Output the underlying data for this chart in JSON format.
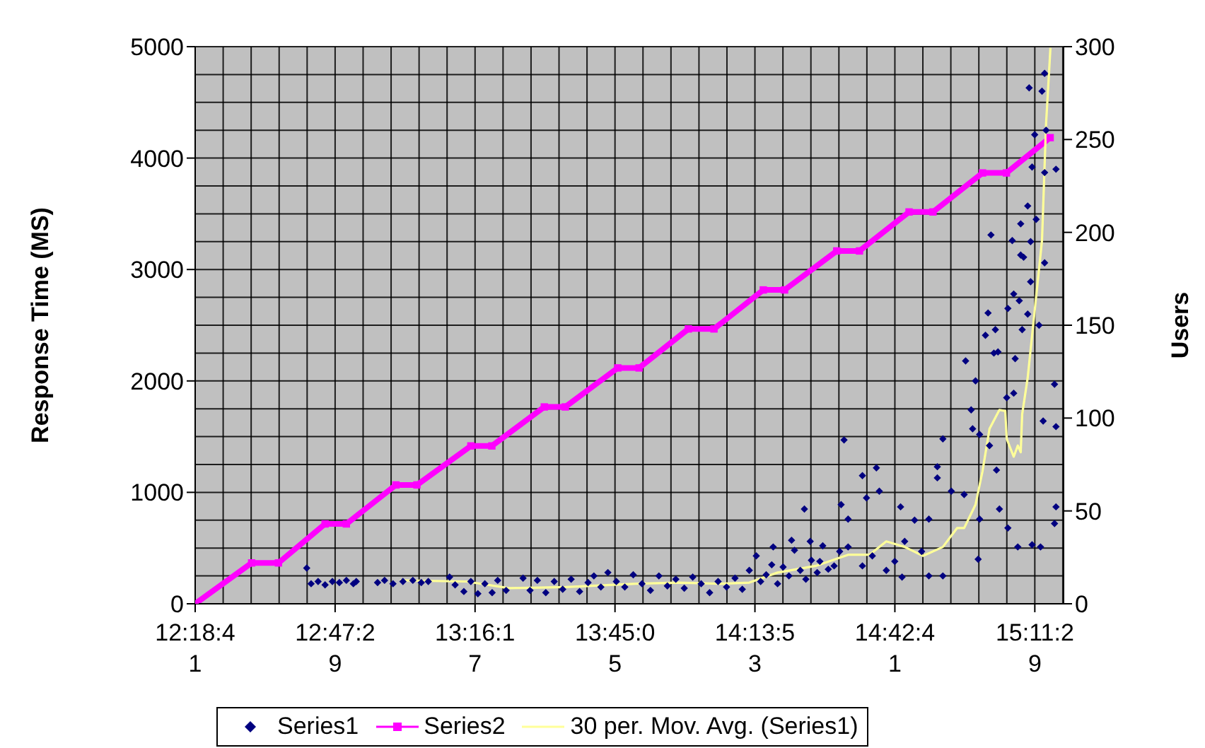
{
  "chart_data": {
    "type": "scatter",
    "ylabel": "Response Time (MS)",
    "y2label": "Users",
    "xlim": [
      12.31139,
      15.29
    ],
    "xticks": [
      {
        "value": 12.31139,
        "label": "12:18:41"
      },
      {
        "value": 12.79139,
        "label": "12:47:29"
      },
      {
        "value": 13.27139,
        "label": "13:16:17"
      },
      {
        "value": 13.75139,
        "label": "13:45:05"
      },
      {
        "value": 14.23139,
        "label": "14:13:53"
      },
      {
        "value": 14.71139,
        "label": "14:42:41"
      },
      {
        "value": 15.19139,
        "label": "15:11:29"
      }
    ],
    "ylim": [
      0,
      5000
    ],
    "yticks": [
      0,
      1000,
      2000,
      3000,
      4000,
      5000
    ],
    "y2lim": [
      0,
      300
    ],
    "y2ticks": [
      0,
      50,
      100,
      150,
      200,
      250,
      300
    ],
    "grid": true,
    "legend": "bottom",
    "series": [
      {
        "name": "Series1",
        "marker": "diamond",
        "color": "#000080",
        "x": [
          12.694,
          12.709,
          12.733,
          12.757,
          12.782,
          12.806,
          12.83,
          12.854,
          12.864,
          12.937,
          12.961,
          12.99,
          13.024,
          13.058,
          13.087,
          13.111,
          13.184,
          13.203,
          13.233,
          13.257,
          13.281,
          13.305,
          13.33,
          13.349,
          13.378,
          13.436,
          13.46,
          13.485,
          13.514,
          13.543,
          13.572,
          13.601,
          13.63,
          13.659,
          13.679,
          13.703,
          13.727,
          13.756,
          13.785,
          13.814,
          13.844,
          13.873,
          13.902,
          13.931,
          13.96,
          13.989,
          14.018,
          14.047,
          14.076,
          14.105,
          14.134,
          14.163,
          14.188,
          14.212,
          14.236,
          14.251,
          14.27,
          14.289,
          14.294,
          14.309,
          14.328,
          14.348,
          14.357,
          14.367,
          14.387,
          14.401,
          14.406,
          14.421,
          14.425,
          14.445,
          14.454,
          14.464,
          14.483,
          14.503,
          14.522,
          14.527,
          14.537,
          14.551,
          14.551,
          14.6,
          14.6,
          14.614,
          14.634,
          14.648,
          14.658,
          14.682,
          14.711,
          14.731,
          14.736,
          14.745,
          14.779,
          14.803,
          14.828,
          14.828,
          14.857,
          14.857,
          14.876,
          14.876,
          14.905,
          14.949,
          14.954,
          14.973,
          14.978,
          14.988,
          14.997,
          15.002,
          15.002,
          15.022,
          15.031,
          15.036,
          15.041,
          15.051,
          15.056,
          15.06,
          15.065,
          15.07,
          15.095,
          15.099,
          15.099,
          15.114,
          15.119,
          15.119,
          15.124,
          15.133,
          15.138,
          15.143,
          15.143,
          15.148,
          15.153,
          15.167,
          15.167,
          15.172,
          15.177,
          15.177,
          15.182,
          15.182,
          15.191,
          15.196,
          15.206,
          15.211,
          15.216,
          15.22,
          15.225,
          15.225,
          15.225,
          15.23,
          15.259,
          15.259,
          15.264,
          15.264,
          15.264
        ],
        "values": [
          320,
          180,
          200,
          170,
          200,
          190,
          210,
          180,
          200,
          190,
          210,
          180,
          200,
          210,
          190,
          200,
          240,
          170,
          110,
          200,
          90,
          180,
          100,
          210,
          120,
          230,
          120,
          210,
          100,
          200,
          130,
          220,
          110,
          190,
          250,
          150,
          280,
          200,
          150,
          260,
          180,
          120,
          250,
          160,
          220,
          140,
          240,
          180,
          100,
          200,
          150,
          230,
          130,
          300,
          430,
          200,
          260,
          350,
          510,
          180,
          330,
          250,
          570,
          480,
          300,
          850,
          220,
          560,
          390,
          280,
          380,
          520,
          310,
          340,
          470,
          890,
          1470,
          760,
          510,
          1150,
          340,
          950,
          430,
          1220,
          1010,
          300,
          380,
          870,
          240,
          560,
          750,
          470,
          760,
          250,
          1130,
          1230,
          1480,
          250,
          1010,
          980,
          2180,
          1740,
          1570,
          2000,
          400,
          760,
          1520,
          2410,
          2610,
          1420,
          3310,
          2250,
          2460,
          1200,
          2260,
          850,
          1850,
          2650,
          680,
          3260,
          2780,
          1890,
          2200,
          510,
          2720,
          3410,
          3130,
          2460,
          3110,
          3570,
          2600,
          4630,
          2890,
          3250,
          3920,
          530,
          4210,
          3450,
          2500,
          510,
          4600,
          1640,
          4760,
          3870,
          3060,
          4250,
          1970,
          720,
          3900,
          1590,
          870
        ]
      },
      {
        "name": "Series2",
        "type": "line",
        "axis": "y2",
        "marker": "square",
        "color": "#ff00ff",
        "x": [
          12.3114,
          12.505,
          12.597,
          12.757,
          12.83,
          13.0,
          13.072,
          13.257,
          13.329,
          13.509,
          13.581,
          13.761,
          13.834,
          14.003,
          14.091,
          14.26,
          14.333,
          14.512,
          14.59,
          14.76,
          14.842,
          15.012,
          15.094,
          15.244
        ],
        "values": [
          0,
          22,
          22,
          43,
          43,
          64,
          64,
          85,
          85,
          106,
          106,
          127,
          127,
          148,
          148,
          169,
          169,
          190,
          190,
          211,
          211,
          232,
          232,
          251
        ]
      },
      {
        "name": "30 per. Mov. Avg. (Series1)",
        "type": "line",
        "marker": "none",
        "color": "#ffff99",
        "x": [
          13.014,
          13.242,
          13.388,
          13.582,
          13.824,
          13.969,
          14.115,
          14.212,
          14.309,
          14.44,
          14.551,
          14.624,
          14.682,
          14.745,
          14.808,
          14.876,
          14.925,
          14.949,
          14.988,
          15.012,
          15.036,
          15.07,
          15.09,
          15.095,
          15.119,
          15.133,
          15.143,
          15.148,
          15.167,
          15.216,
          15.23,
          15.245
        ],
        "values": [
          210,
          200,
          140,
          150,
          180,
          190,
          180,
          190,
          280,
          340,
          440,
          440,
          560,
          510,
          430,
          510,
          680,
          680,
          890,
          1190,
          1570,
          1740,
          1730,
          1480,
          1320,
          1420,
          1360,
          1700,
          2030,
          3260,
          4310,
          4990
        ]
      }
    ]
  }
}
